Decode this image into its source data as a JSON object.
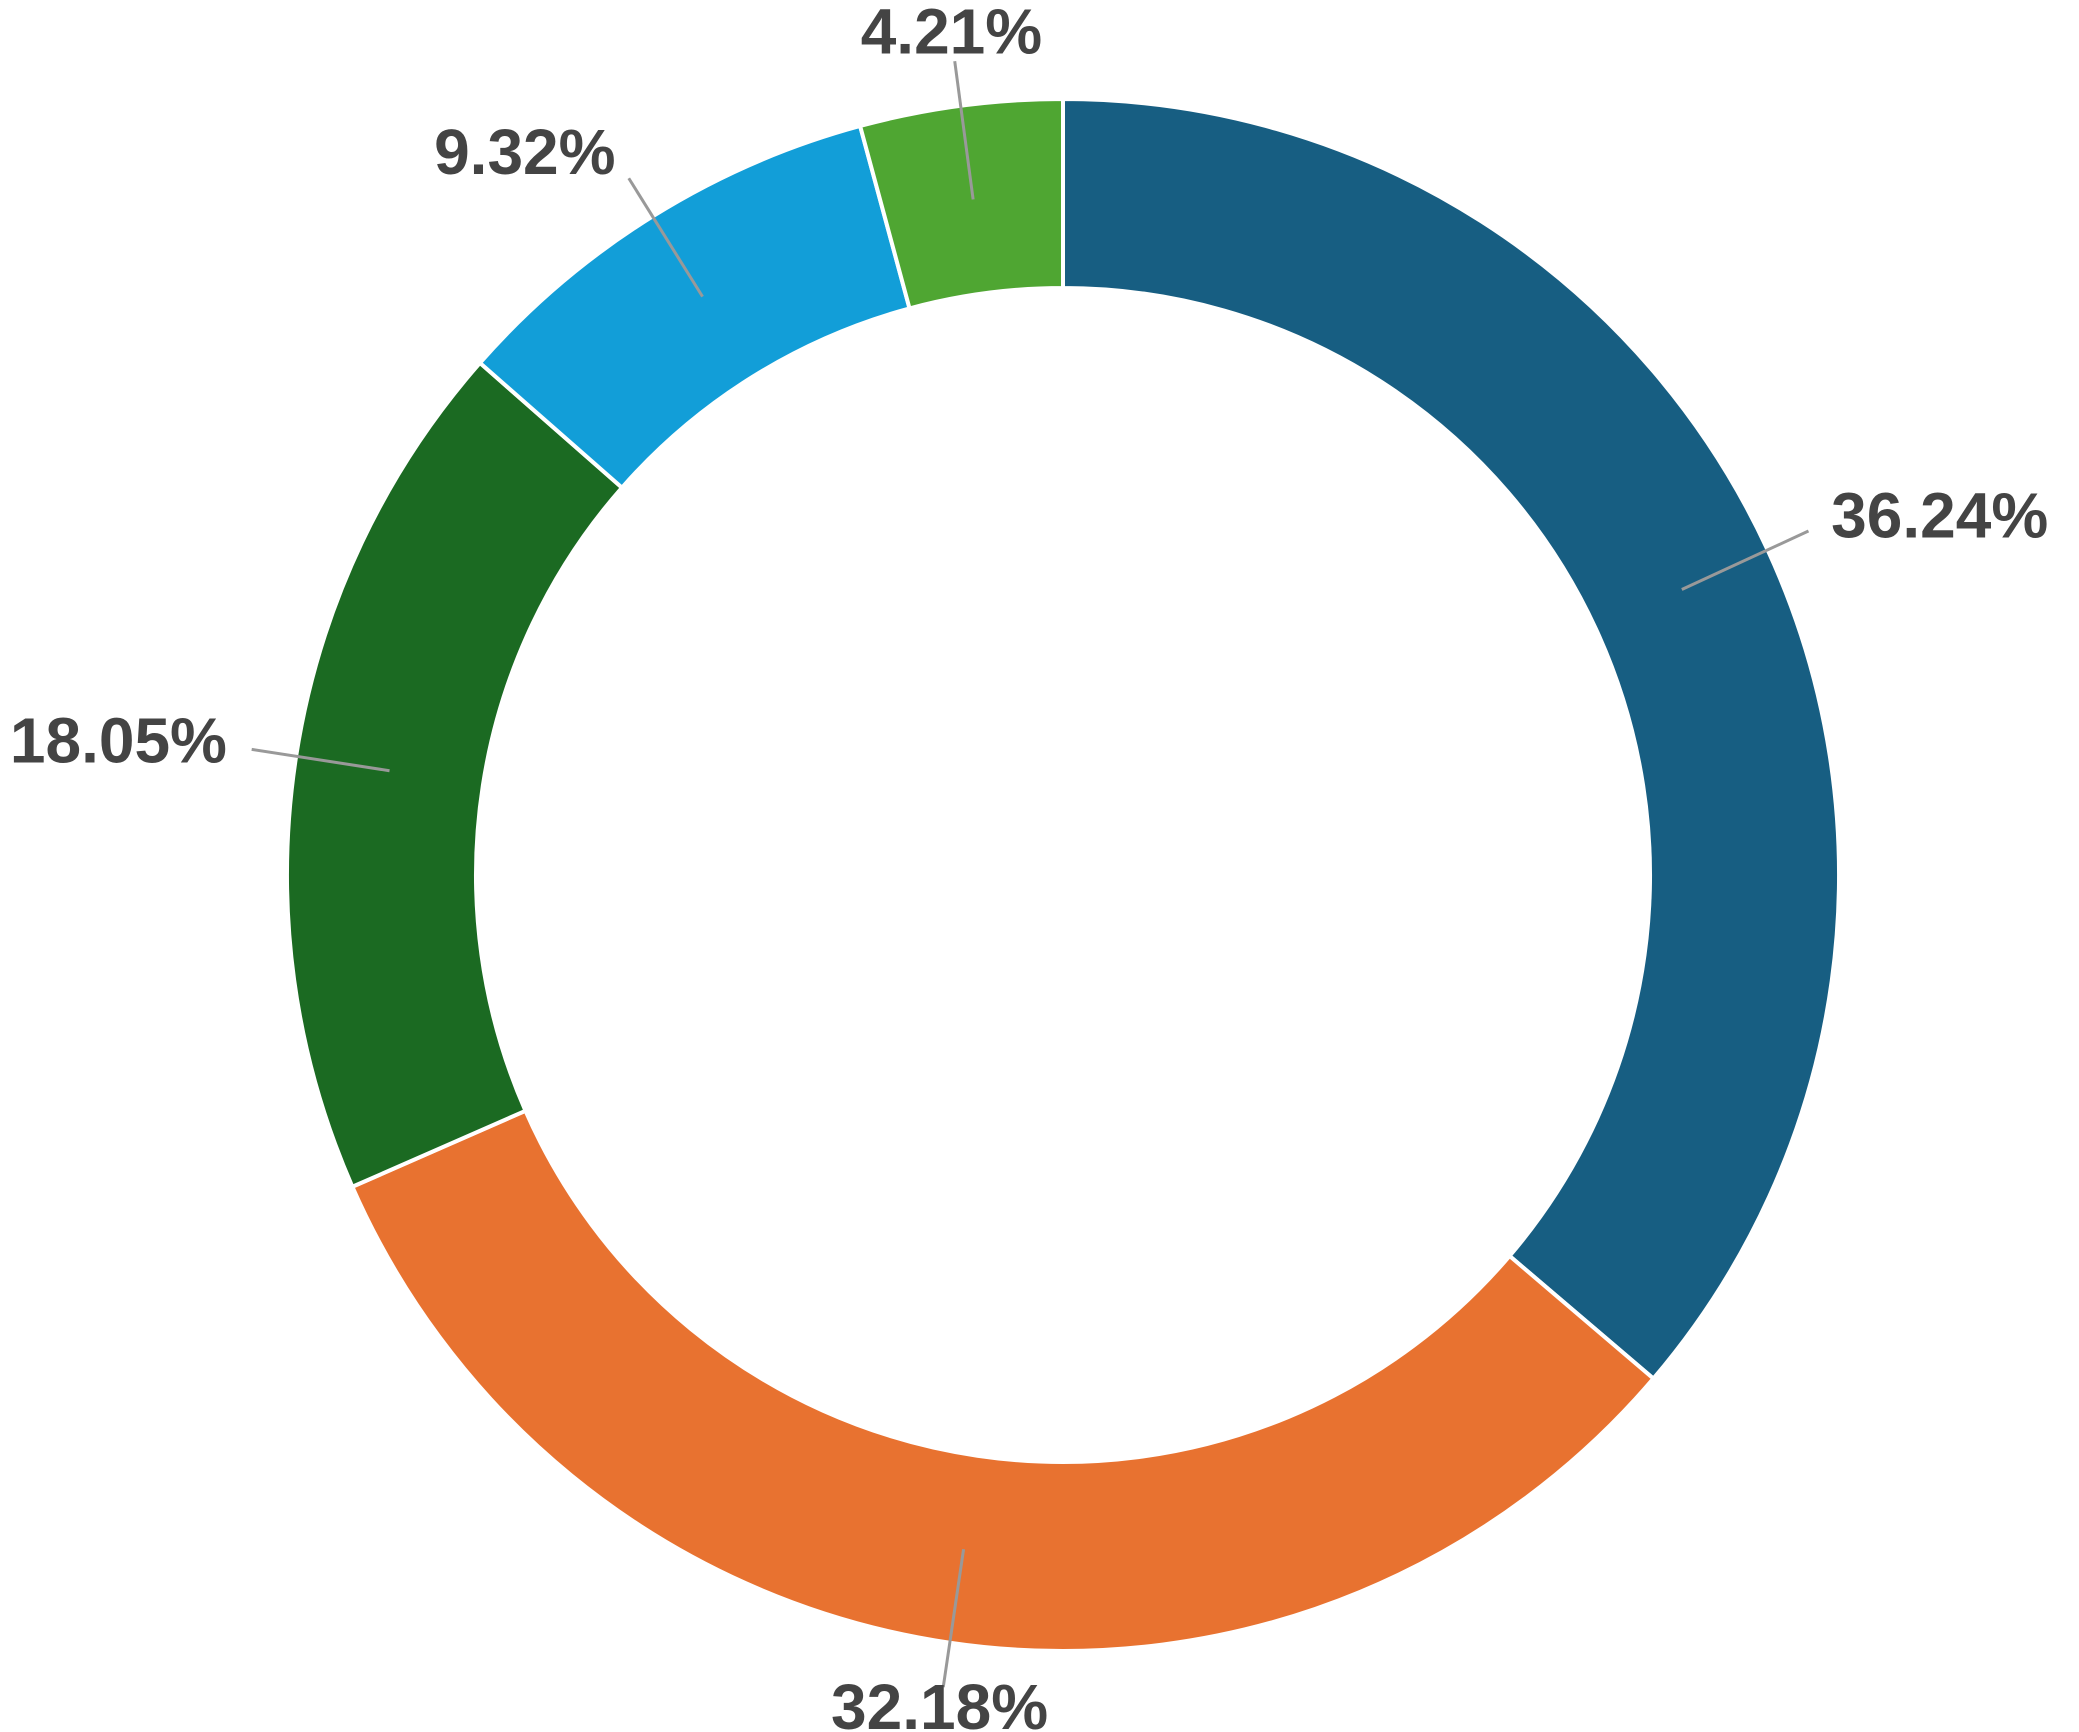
{
  "chart_data": {
    "type": "donut",
    "values": [
      36.24,
      32.18,
      18.05,
      9.32,
      4.21
    ],
    "value_labels": [
      "36.24%",
      "32.18%",
      "18.05%",
      "9.32%",
      "4.21%"
    ],
    "colors": [
      "#175e82",
      "#e87230",
      "#1b6a22",
      "#129ed8",
      "#4fa632"
    ]
  }
}
